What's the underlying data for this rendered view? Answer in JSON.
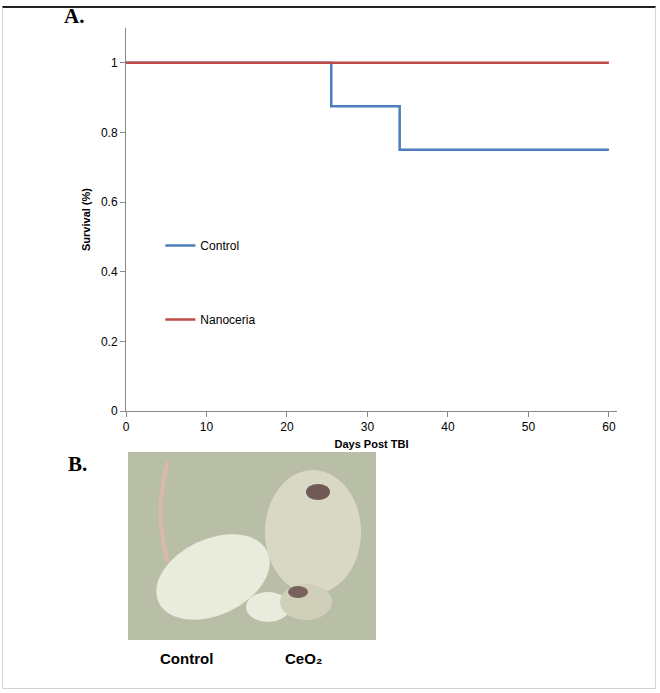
{
  "panel_labels": [
    "A.",
    "B."
  ],
  "chart_data": {
    "type": "line",
    "x_label": "Days Post TBI",
    "y_label": "Survival (%)",
    "xlim": [
      0,
      61
    ],
    "xticks": [
      0,
      10,
      20,
      30,
      40,
      50,
      60
    ],
    "ylim": [
      0,
      1.1
    ],
    "yticks": [
      0,
      0.2,
      0.4,
      0.6,
      0.8,
      1
    ],
    "grid": false,
    "legend": "left",
    "line_style": "step",
    "series": [
      {
        "name": "Control",
        "color": "#4a7ebb",
        "x": [
          0,
          25.5,
          34,
          60
        ],
        "values": [
          1,
          0.875,
          0.75,
          0.75
        ]
      },
      {
        "name": "Nanoceria",
        "color": "#be4b48",
        "x": [
          0,
          60
        ],
        "values": [
          1,
          1
        ]
      }
    ]
  },
  "image": {
    "labels": [
      "Control",
      "CeO₂"
    ]
  }
}
